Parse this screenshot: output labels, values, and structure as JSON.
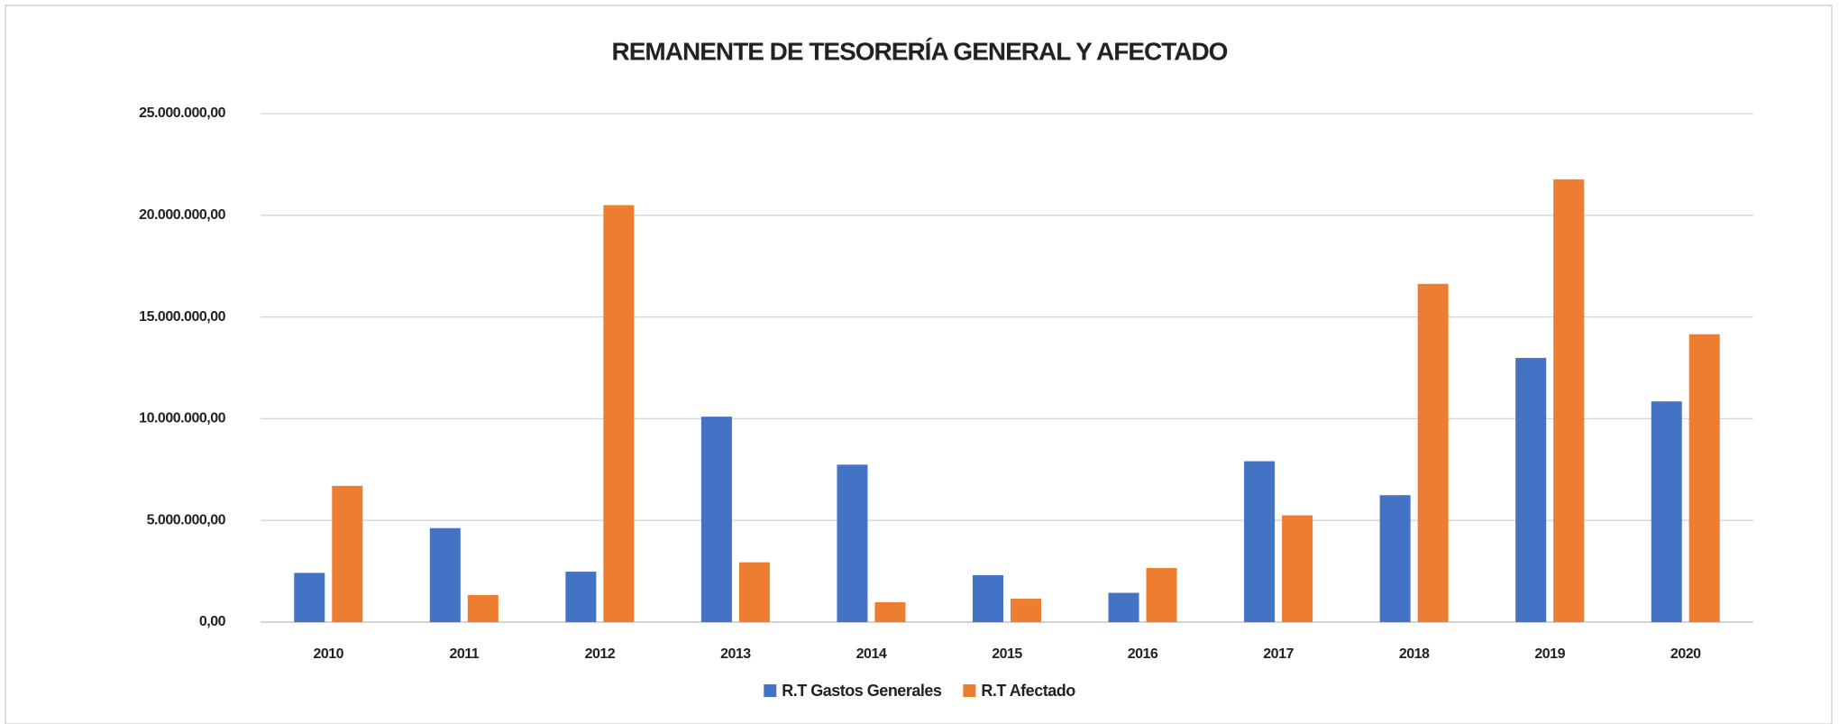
{
  "chart_data": {
    "type": "bar",
    "title": "REMANENTE DE TESORERÍA GENERAL Y AFECTADO",
    "categories": [
      "2010",
      "2011",
      "2012",
      "2013",
      "2014",
      "2015",
      "2016",
      "2017",
      "2018",
      "2019",
      "2020"
    ],
    "series": [
      {
        "name": "R.T Gastos Generales",
        "color": "#4472c4",
        "values": [
          2420000,
          4620000,
          2480000,
          10100000,
          7740000,
          2310000,
          1440000,
          7910000,
          6240000,
          12990000,
          10850000
        ]
      },
      {
        "name": "R.T Afectado",
        "color": "#ed7d31",
        "values": [
          6700000,
          1330000,
          20500000,
          2940000,
          980000,
          1150000,
          2660000,
          5250000,
          16630000,
          21770000,
          14150000
        ]
      }
    ],
    "ylim": [
      0,
      25000000
    ],
    "yticks": [
      {
        "value": 0,
        "label": "0,00"
      },
      {
        "value": 5000000,
        "label": "5.000.000,00"
      },
      {
        "value": 10000000,
        "label": "10.000.000,00"
      },
      {
        "value": 15000000,
        "label": "15.000.000,00"
      },
      {
        "value": 20000000,
        "label": "20.000.000,00"
      },
      {
        "value": 25000000,
        "label": "25.000.000,00"
      }
    ],
    "grid": true,
    "legend": "bottom"
  }
}
